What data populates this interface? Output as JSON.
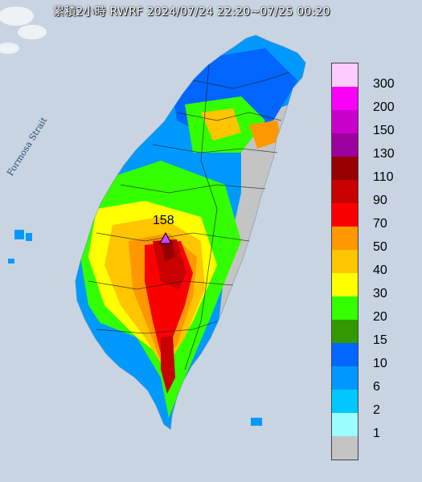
{
  "title": "累積2小時 RWRF 2024/07/24 22:20~07/25 00:20",
  "sea_label": "Formosa Strait",
  "max_marker": {
    "value": "158",
    "color": "#cc44ff"
  },
  "colors": {
    "sea": "#c8d4e2",
    "land": "#e9e9ea"
  },
  "legend": [
    {
      "label": "300",
      "color": "#fecbfd"
    },
    {
      "label": "200",
      "color": "#fa00f7"
    },
    {
      "label": "150",
      "color": "#c900cc"
    },
    {
      "label": "130",
      "color": "#9c009d"
    },
    {
      "label": "110",
      "color": "#970000"
    },
    {
      "label": "90",
      "color": "#c80000"
    },
    {
      "label": "70",
      "color": "#fb0000"
    },
    {
      "label": "50",
      "color": "#ff9800"
    },
    {
      "label": "40",
      "color": "#ffc500"
    },
    {
      "label": "30",
      "color": "#ffff00"
    },
    {
      "label": "20",
      "color": "#33ff00"
    },
    {
      "label": "15",
      "color": "#329a00"
    },
    {
      "label": "10",
      "color": "#0066ff"
    },
    {
      "label": "6",
      "color": "#0099ff"
    },
    {
      "label": "2",
      "color": "#00c8ff"
    },
    {
      "label": "1",
      "color": "#9bffff"
    },
    {
      "label": "",
      "color": "#c4c4c4"
    }
  ]
}
